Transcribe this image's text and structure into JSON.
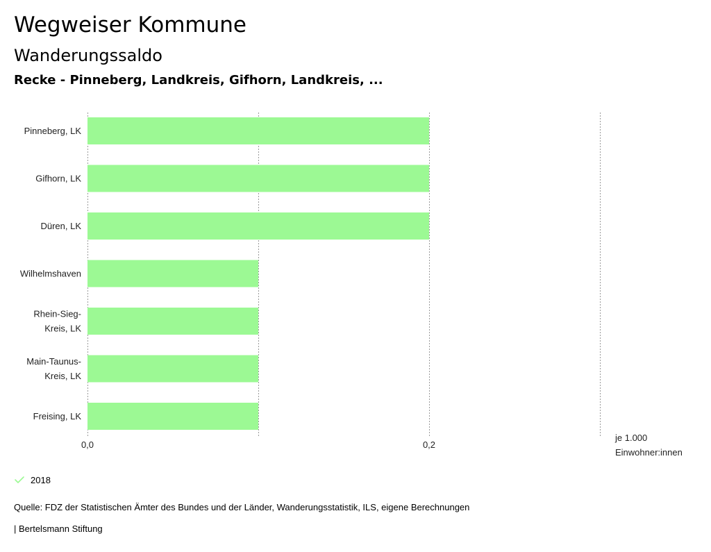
{
  "header": {
    "title": "Wegweiser Kommune",
    "subtitle": "Wanderungssaldo",
    "region": "Recke - Pinneberg, Landkreis, Gifhorn, Landkreis, ..."
  },
  "chart_data": {
    "type": "bar",
    "orientation": "horizontal",
    "categories": [
      [
        "Pinneberg, LK"
      ],
      [
        "Gifhorn, LK"
      ],
      [
        "Düren, LK"
      ],
      [
        "Wilhelmshaven"
      ],
      [
        "Rhein-Sieg-",
        "Kreis, LK"
      ],
      [
        "Main-Taunus-",
        "Kreis, LK"
      ],
      [
        "Freising, LK"
      ]
    ],
    "series": [
      {
        "name": "2018",
        "values": [
          0.2,
          0.2,
          0.2,
          0.1,
          0.1,
          0.1,
          0.1
        ]
      }
    ],
    "xlim": [
      0,
      0.3
    ],
    "x_ticks": [
      {
        "value": 0,
        "label": "0,0"
      },
      {
        "value": 0.2,
        "label": "0,2"
      }
    ],
    "x_gridlines": [
      0,
      0.1,
      0.2,
      0.3
    ],
    "unit_label": [
      "je 1.000",
      "Einwohner:innen"
    ],
    "grid": true,
    "legend_position": "bottom-left",
    "bar_color": "#9cf994",
    "grid_color": "#999999"
  },
  "legend": {
    "label": "2018",
    "check_color": "#9cf994"
  },
  "footer": {
    "source": "Quelle: FDZ der Statistischen Ämter des Bundes und der Länder, Wanderungsstatistik, ILS, eigene Berechnungen",
    "credit": "| Bertelsmann Stiftung"
  }
}
